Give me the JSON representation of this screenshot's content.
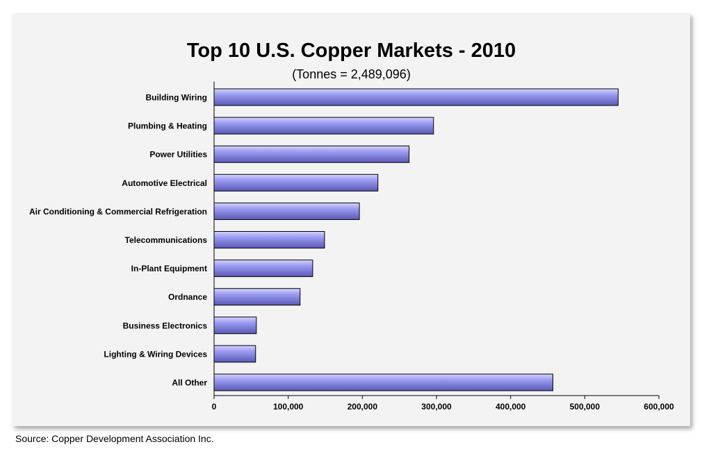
{
  "chart_data": {
    "type": "bar",
    "orientation": "horizontal",
    "title": "Top 10 U.S. Copper Markets - 2010",
    "subtitle": "(Tonnes = 2,489,096)",
    "categories": [
      "Building Wiring",
      "Plumbing & Heating",
      "Power Utilities",
      "Automotive Electrical",
      "Air Conditioning & Commercial Refrigeration",
      "Telecommunications",
      "In-Plant Equipment",
      "Ordnance",
      "Business Electronics",
      "Lighting & Wiring Devices",
      "All Other"
    ],
    "values": [
      545000,
      296000,
      263000,
      221000,
      196000,
      149000,
      133000,
      116000,
      57000,
      56000,
      457000
    ],
    "xlim": [
      0,
      600000
    ],
    "xticks": [
      0,
      100000,
      200000,
      300000,
      400000,
      500000,
      600000
    ],
    "xtick_labels": [
      "0",
      "100,000",
      "200,000",
      "300,000",
      "400,000",
      "500,000",
      "600,000"
    ],
    "xlabel": "",
    "ylabel": "",
    "grid": false,
    "legend": "none",
    "bar_color": "#9b9bf0",
    "bar_highlight": "#d4d4ff",
    "bar_shadow": "#5a5ab8",
    "bar_outline": "#000000"
  },
  "source": "Source: Copper Development Association Inc."
}
